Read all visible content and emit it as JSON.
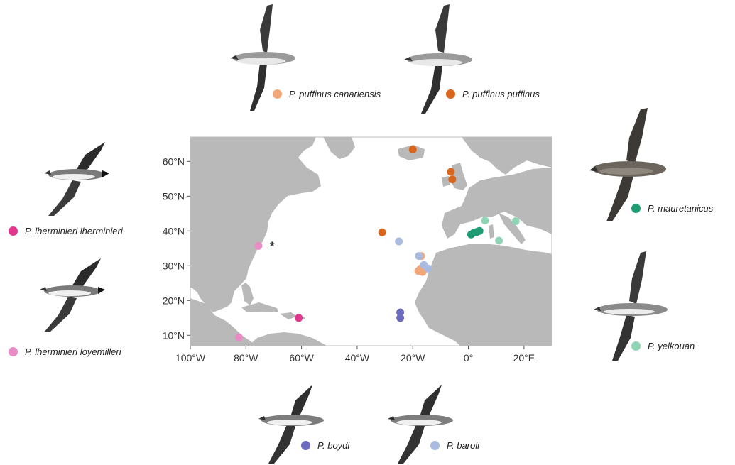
{
  "map": {
    "lon_range": [
      -100,
      30
    ],
    "lat_range": [
      7,
      67
    ],
    "x_ticks": [
      {
        "lon": -100,
        "label": "100°W"
      },
      {
        "lon": -80,
        "label": "80°W"
      },
      {
        "lon": -60,
        "label": "60°W"
      },
      {
        "lon": -40,
        "label": "40°W"
      },
      {
        "lon": -20,
        "label": "20°W"
      },
      {
        "lon": 0,
        "label": "0°"
      },
      {
        "lon": 20,
        "label": "20°E"
      }
    ],
    "y_ticks": [
      {
        "lat": 60,
        "label": "60°N"
      },
      {
        "lat": 50,
        "label": "50°N"
      },
      {
        "lat": 40,
        "label": "40°N"
      },
      {
        "lat": 30,
        "label": "30°N"
      },
      {
        "lat": 20,
        "label": "20°N"
      },
      {
        "lat": 10,
        "label": "10°N"
      }
    ],
    "colors": {
      "land": "#b9b9b9",
      "sea": "#ffffff"
    },
    "marker_note": {
      "text": "*",
      "lon": -71.5,
      "lat": 35.5
    }
  },
  "taxa": [
    {
      "id": "canariensis",
      "name": "P. puffinus canariensis",
      "color": "#f2a77a",
      "points": [
        [
          -17,
          32.8
        ],
        [
          -18,
          28.5
        ],
        [
          -16.5,
          28.2
        ],
        [
          -17.2,
          29.2
        ]
      ]
    },
    {
      "id": "puffinus",
      "name": "P. puffinus puffinus",
      "color": "#d9661c",
      "points": [
        [
          -20,
          63.4
        ],
        [
          -6.3,
          57
        ],
        [
          -5.8,
          54.8
        ],
        [
          -31,
          39.6
        ]
      ]
    },
    {
      "id": "mauretanicus",
      "name": "P. mauretanicus",
      "color": "#1e9b72",
      "points": [
        [
          1,
          39
        ],
        [
          2,
          39.5
        ],
        [
          3,
          39.7
        ],
        [
          4,
          40
        ]
      ]
    },
    {
      "id": "yelkouan",
      "name": "P. yelkouan",
      "color": "#8fd4b4",
      "points": [
        [
          6,
          43
        ],
        [
          17,
          42.8
        ],
        [
          11,
          37.2
        ]
      ]
    },
    {
      "id": "lherminieri",
      "name": "P. lherminieri lherminieri",
      "color": "#e2358c",
      "points": [
        [
          -61,
          15
        ]
      ]
    },
    {
      "id": "loyemilleri",
      "name": "P. lherminieri loyemilleri",
      "color": "#e98bc4",
      "points": [
        [
          -75.5,
          35.7
        ],
        [
          -82.5,
          9.4
        ]
      ]
    },
    {
      "id": "boydi",
      "name": "P. boydi",
      "color": "#6c6bbf",
      "points": [
        [
          -24.5,
          16.6
        ],
        [
          -24.5,
          15
        ]
      ]
    },
    {
      "id": "baroli",
      "name": "P. baroli",
      "color": "#a9bcdf",
      "points": [
        [
          -25,
          37
        ],
        [
          -17.8,
          32.8
        ],
        [
          -16,
          30.2
        ],
        [
          -14.5,
          29.2
        ]
      ]
    }
  ],
  "bird_icons": [
    "bird-icon-canariensis",
    "bird-icon-puffinus",
    "bird-icon-lherminieri",
    "bird-icon-loyemilleri",
    "bird-icon-mauretanicus",
    "bird-icon-yelkouan",
    "bird-icon-boydi",
    "bird-icon-baroli"
  ]
}
